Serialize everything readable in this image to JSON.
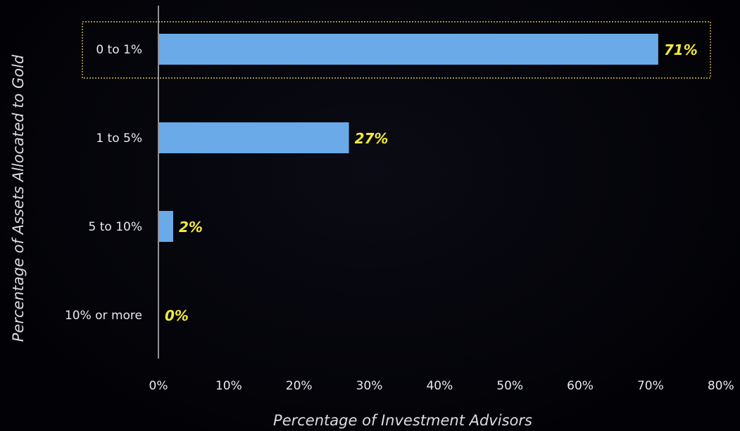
{
  "chart_data": {
    "type": "bar",
    "orientation": "horizontal",
    "categories": [
      "0 to 1%",
      "1 to 5%",
      "5 to 10%",
      "10% or more"
    ],
    "values": [
      71,
      27,
      2,
      0
    ],
    "data_labels": [
      "71%",
      "27%",
      "2%",
      "0%"
    ],
    "xlabel": "Percentage of Investment Advisors",
    "ylabel": "Percentage of Assets Allocated to Gold",
    "xlim": [
      0,
      80
    ],
    "x_ticks": [
      0,
      10,
      20,
      30,
      40,
      50,
      60,
      70,
      80
    ],
    "x_tick_labels": [
      "0%",
      "10%",
      "20%",
      "30%",
      "40%",
      "50%",
      "60%",
      "70%",
      "80%"
    ],
    "grid": false,
    "highlighted_category": "0 to 1%",
    "colors": {
      "bar": "#6aaae8",
      "data_label": "#f3ea3c",
      "highlight_border": "#c8b84a",
      "background": "#020206"
    }
  }
}
